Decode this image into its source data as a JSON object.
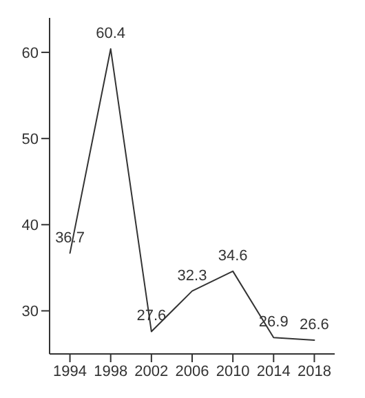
{
  "chart_data": {
    "type": "line",
    "x": [
      1994,
      1998,
      2002,
      2006,
      2010,
      2014,
      2018
    ],
    "values": [
      36.7,
      60.4,
      27.6,
      32.3,
      34.6,
      26.9,
      26.6
    ],
    "color": "#333333",
    "data_labels": true,
    "grid": false,
    "marker": "none",
    "xlim": [
      1992,
      2020
    ],
    "xticks": [
      1994,
      1998,
      2002,
      2006,
      2010,
      2014,
      2018
    ],
    "ylim": [
      25,
      64
    ],
    "yticks": [
      30,
      40,
      50,
      60
    ]
  }
}
